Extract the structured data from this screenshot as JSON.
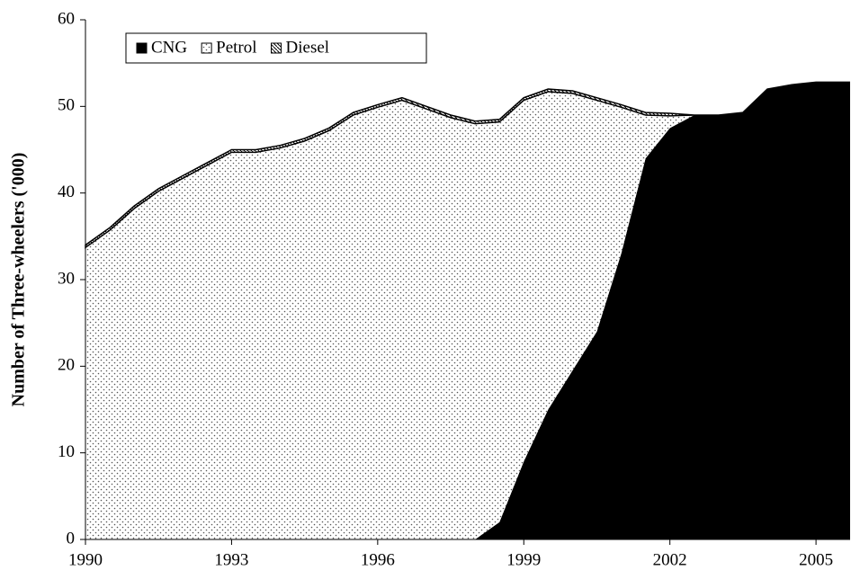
{
  "chart_data": {
    "type": "stacked-area",
    "ylabel": "Number of Three-wheelers ('000)",
    "x": [
      1990,
      1990.5,
      1991,
      1991.5,
      1992,
      1992.5,
      1993,
      1993.5,
      1994,
      1994.5,
      1995,
      1995.5,
      1996,
      1996.5,
      1997,
      1997.5,
      1998,
      1998.5,
      1999,
      1999.5,
      2000,
      2000.5,
      2001,
      2001.5,
      2002,
      2002.5,
      2003,
      2003.5,
      2004,
      2004.5,
      2005,
      2005.5,
      2005.7
    ],
    "series": [
      {
        "name": "CNG",
        "color": "#000000",
        "pattern": "solid",
        "values": [
          0,
          0,
          0,
          0,
          0,
          0,
          0,
          0,
          0,
          0,
          0,
          0,
          0,
          0,
          0,
          0,
          0,
          2,
          9,
          15,
          19.5,
          24,
          33,
          44,
          47.5,
          49,
          49,
          49.3,
          52,
          52.5,
          52.8,
          52.8,
          52.8
        ]
      },
      {
        "name": "Petrol",
        "color": "#000000",
        "pattern": "dots",
        "values": [
          33.7,
          35.7,
          38.2,
          40.2,
          41.7,
          43.2,
          44.7,
          44.7,
          45.2,
          46,
          47.2,
          49,
          49.9,
          50.7,
          49.7,
          48.7,
          48,
          46.2,
          41.7,
          36.7,
          32,
          26.7,
          16.9,
          5,
          1.4,
          0,
          0,
          0,
          0,
          0,
          0,
          0,
          0
        ]
      },
      {
        "name": "Diesel",
        "color": "#000000",
        "pattern": "hatch",
        "values": [
          0.3,
          0.3,
          0.3,
          0.3,
          0.3,
          0.3,
          0.3,
          0.3,
          0.3,
          0.3,
          0.3,
          0.3,
          0.3,
          0.3,
          0.3,
          0.3,
          0.3,
          0.3,
          0.3,
          0.3,
          0.3,
          0.3,
          0.3,
          0.3,
          0.3,
          0,
          0,
          0,
          0,
          0,
          0,
          0,
          0
        ]
      }
    ],
    "xlim": [
      1990,
      2005.7
    ],
    "xticks": [
      1990,
      1993,
      1996,
      1999,
      2002,
      2005
    ],
    "ylim": [
      0,
      60
    ],
    "yticks": [
      0,
      10,
      20,
      30,
      40,
      50,
      60
    ],
    "legend": "top-left"
  }
}
